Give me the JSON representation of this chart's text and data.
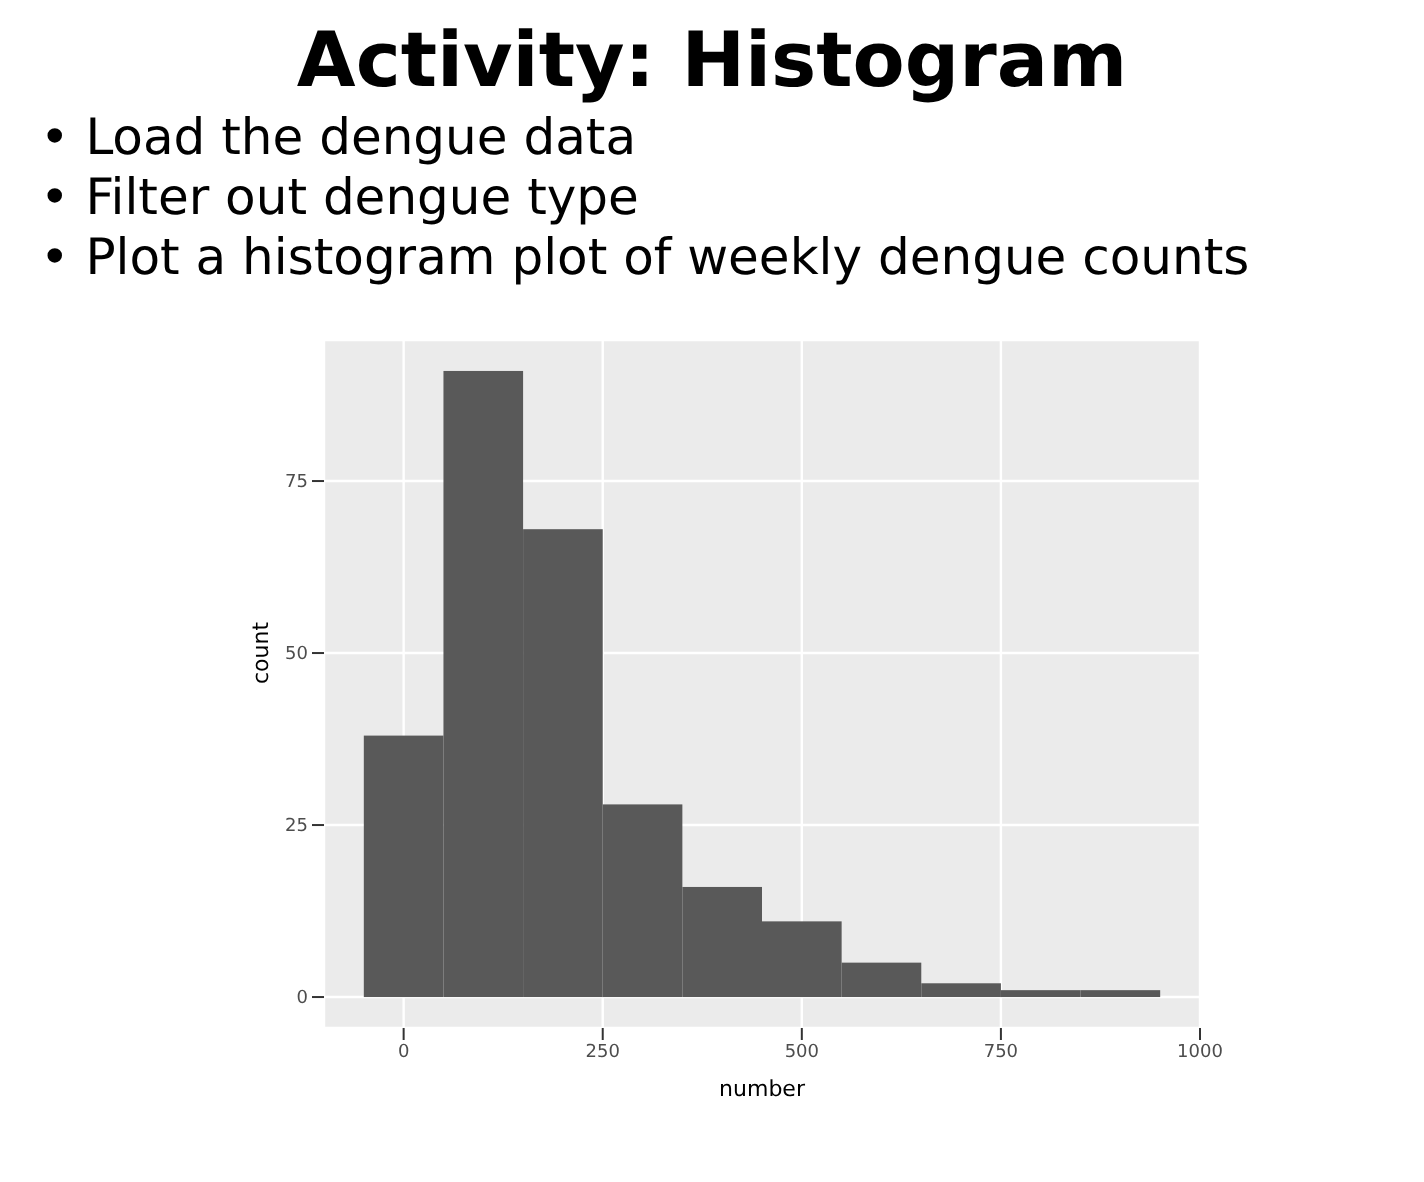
{
  "chart_data": {
    "type": "histogram",
    "title": "Activity: Histogram",
    "annotations": [
      "• Load the dengue data",
      "• Filter out dengue type",
      "• Plot a histogram plot of weekly dengue counts"
    ],
    "xlabel": "number",
    "ylabel": "count",
    "bins": [
      -50,
      50,
      150,
      250,
      350,
      450,
      550,
      650,
      750,
      850,
      950
    ],
    "values": [
      38,
      91,
      68,
      28,
      16,
      11,
      5,
      2,
      1,
      1
    ],
    "color": "#595959",
    "xlim": [
      -100,
      1000
    ],
    "xticks": [
      0,
      250,
      500,
      750,
      1000
    ],
    "ylim": [
      -4.5,
      95.5
    ],
    "yticks": [
      0,
      25,
      50,
      75
    ],
    "grid": true
  }
}
